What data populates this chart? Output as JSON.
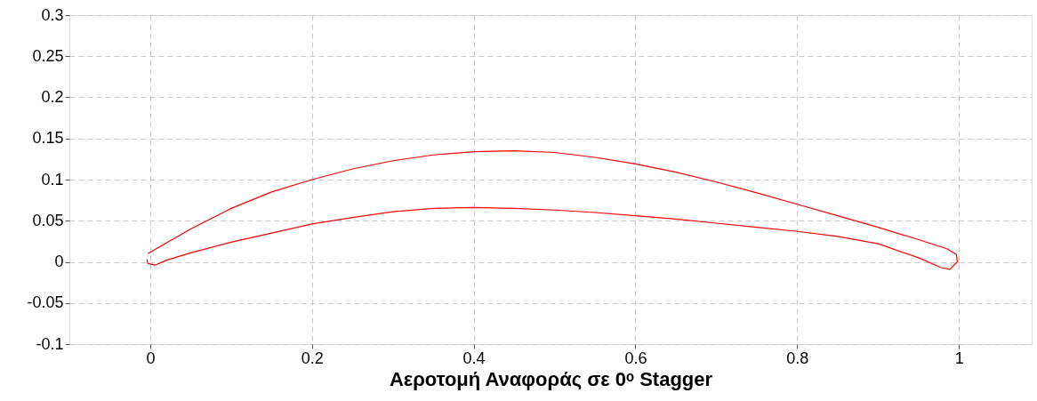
{
  "chart_data": {
    "type": "line",
    "xlabel": "Αεροτομή Αναφοράς σε 0ᵒ Stagger",
    "series": [
      {
        "color": "#ff0000",
        "x": [
          -0.003,
          0.05,
          0.1,
          0.15,
          0.2,
          0.25,
          0.3,
          0.35,
          0.4,
          0.45,
          0.5,
          0.55,
          0.6,
          0.65,
          0.7,
          0.75,
          0.8,
          0.85,
          0.9,
          0.95,
          0.985,
          0.997,
          0.998,
          0.989,
          0.978,
          0.95,
          0.9,
          0.85,
          0.8,
          0.75,
          0.7,
          0.65,
          0.6,
          0.55,
          0.5,
          0.45,
          0.4,
          0.35,
          0.3,
          0.25,
          0.2,
          0.15,
          0.1,
          0.05,
          0.02,
          0.006,
          -0.003,
          -0.004
        ],
        "values": [
          0.01,
          0.04,
          0.065,
          0.085,
          0.1,
          0.113,
          0.123,
          0.13,
          0.134,
          0.135,
          0.133,
          0.127,
          0.119,
          0.109,
          0.097,
          0.084,
          0.07,
          0.056,
          0.042,
          0.027,
          0.016,
          0.009,
          0.0,
          -0.009,
          -0.007,
          0.005,
          0.022,
          0.031,
          0.037,
          0.042,
          0.047,
          0.052,
          0.056,
          0.06,
          0.063,
          0.065,
          0.066,
          0.065,
          0.061,
          0.054,
          0.046,
          0.035,
          0.024,
          0.011,
          0.002,
          -0.004,
          -0.002,
          0.003
        ]
      }
    ],
    "xlim": [
      -0.1,
      1.09
    ],
    "ylim": [
      -0.1,
      0.3
    ],
    "xticks": [
      0,
      0.2,
      0.4,
      0.6,
      0.8,
      1
    ],
    "yticks": [
      -0.1,
      -0.05,
      0,
      0.05,
      0.1,
      0.15,
      0.2,
      0.25,
      0.3
    ],
    "grid": true,
    "marker": "none",
    "line_style": "solid"
  }
}
